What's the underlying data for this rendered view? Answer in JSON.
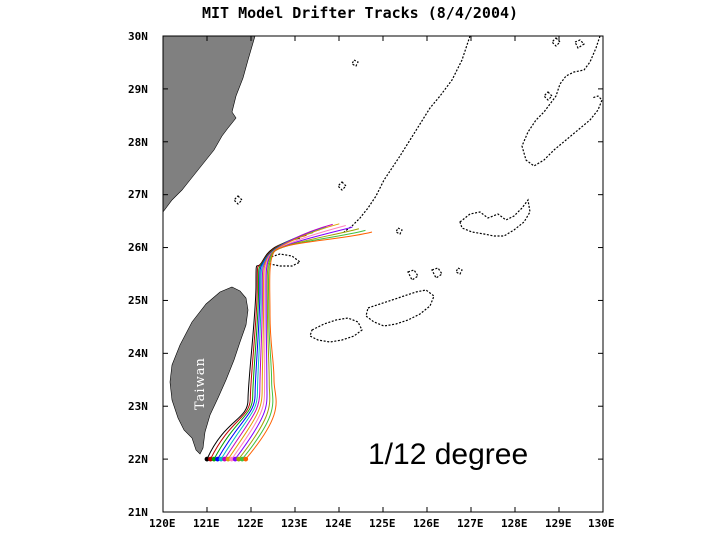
{
  "title": "MIT Model Drifter Tracks (8/4/2004)",
  "map": {
    "lon_range": [
      120,
      130
    ],
    "lat_range": [
      21,
      30
    ],
    "latitude_labels": [
      "30N",
      "29N",
      "28N",
      "27N",
      "26N",
      "25N",
      "24N",
      "23N",
      "22N",
      "21N"
    ],
    "longitude_labels": [
      "120E",
      "121E",
      "122E",
      "123E",
      "124E",
      "125E",
      "126E",
      "127E",
      "128E",
      "129E",
      "130E"
    ],
    "land_color": "#808080",
    "land_labels": {
      "taiwan": "Taiwan"
    },
    "annotation": "1/12 degree",
    "drifter_release_lat": 22,
    "drifter_colors": [
      "#000000",
      "#c00000",
      "#00a000",
      "#0000ff",
      "#00c0c0",
      "#c000c0",
      "#e0a000",
      "#ff80c0",
      "#8000ff",
      "#a0a000",
      "#40c040",
      "#ff6000"
    ],
    "drifter_release_lons": [
      121.0,
      121.08,
      121.16,
      121.24,
      121.32,
      121.4,
      121.48,
      121.56,
      121.64,
      121.72,
      121.8,
      121.88
    ]
  }
}
